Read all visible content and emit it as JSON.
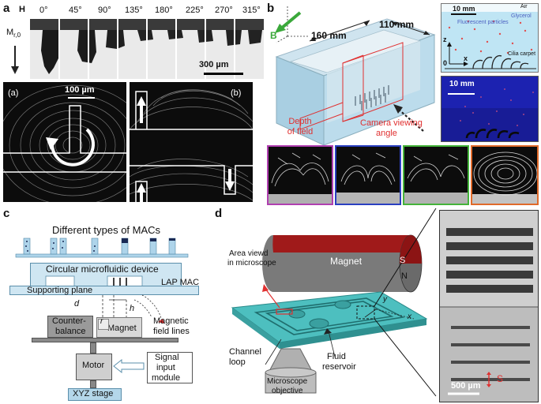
{
  "panel_a": {
    "letter": "a",
    "H_label": "H",
    "M_label": "M",
    "M_sub": "r,0",
    "angles": [
      "0°",
      "45°",
      "90°",
      "135°",
      "180°",
      "225°",
      "270°",
      "315°"
    ],
    "scale_top": "300 µm",
    "scale_bottom": "100 µm",
    "sub_left": "(a)",
    "sub_right": "(b)"
  },
  "panel_b": {
    "letter": "b",
    "B_label": "B",
    "len_1": "160 mm",
    "len_2": "110 mm",
    "depth_line1": "Depth",
    "depth_line2": "of field",
    "camera_line1": "Camera viewing",
    "camera_line2": "angle",
    "inset_scale_1": "10 mm",
    "air": "Air",
    "glycerol": "Glycerol",
    "particles": "Fluorescent particles",
    "cilia": "Cilia carpet",
    "z": "z",
    "x": "x",
    "zero": "0",
    "inset_scale_2": "10 mm",
    "colors": {
      "purple": "#b03fb0",
      "blue": "#2a3fc0",
      "green": "#44b33a",
      "orange": "#e06a2a",
      "red": "#e03030"
    }
  },
  "panel_c": {
    "letter": "c",
    "title": "Different types of MACs",
    "device": "Circular microfluidic device",
    "lap": "LAP MAC",
    "plane": "Supporting plane",
    "d": "d",
    "h": "h",
    "r": "r",
    "counter_1": "Counter-",
    "counter_2": "balance",
    "magnet": "Magnet",
    "field_1": "Magnetic",
    "field_2": "field lines",
    "motor": "Motor",
    "signal_1": "Signal",
    "signal_2": "input",
    "signal_3": "module",
    "stage": "XYZ stage"
  },
  "panel_d": {
    "letter": "d",
    "area_1": "Area viewd",
    "area_2": "in microscope",
    "magnet": "Magnet",
    "S": "S",
    "N": "N",
    "y": "y",
    "x": "x",
    "channel_1": "Channel",
    "channel_2": "loop",
    "fluid_1": "Fluid",
    "fluid_2": "reservoir",
    "obj_1": "Microscope",
    "obj_2": "objective",
    "scale": "500 µm",
    "s_label": "S"
  }
}
